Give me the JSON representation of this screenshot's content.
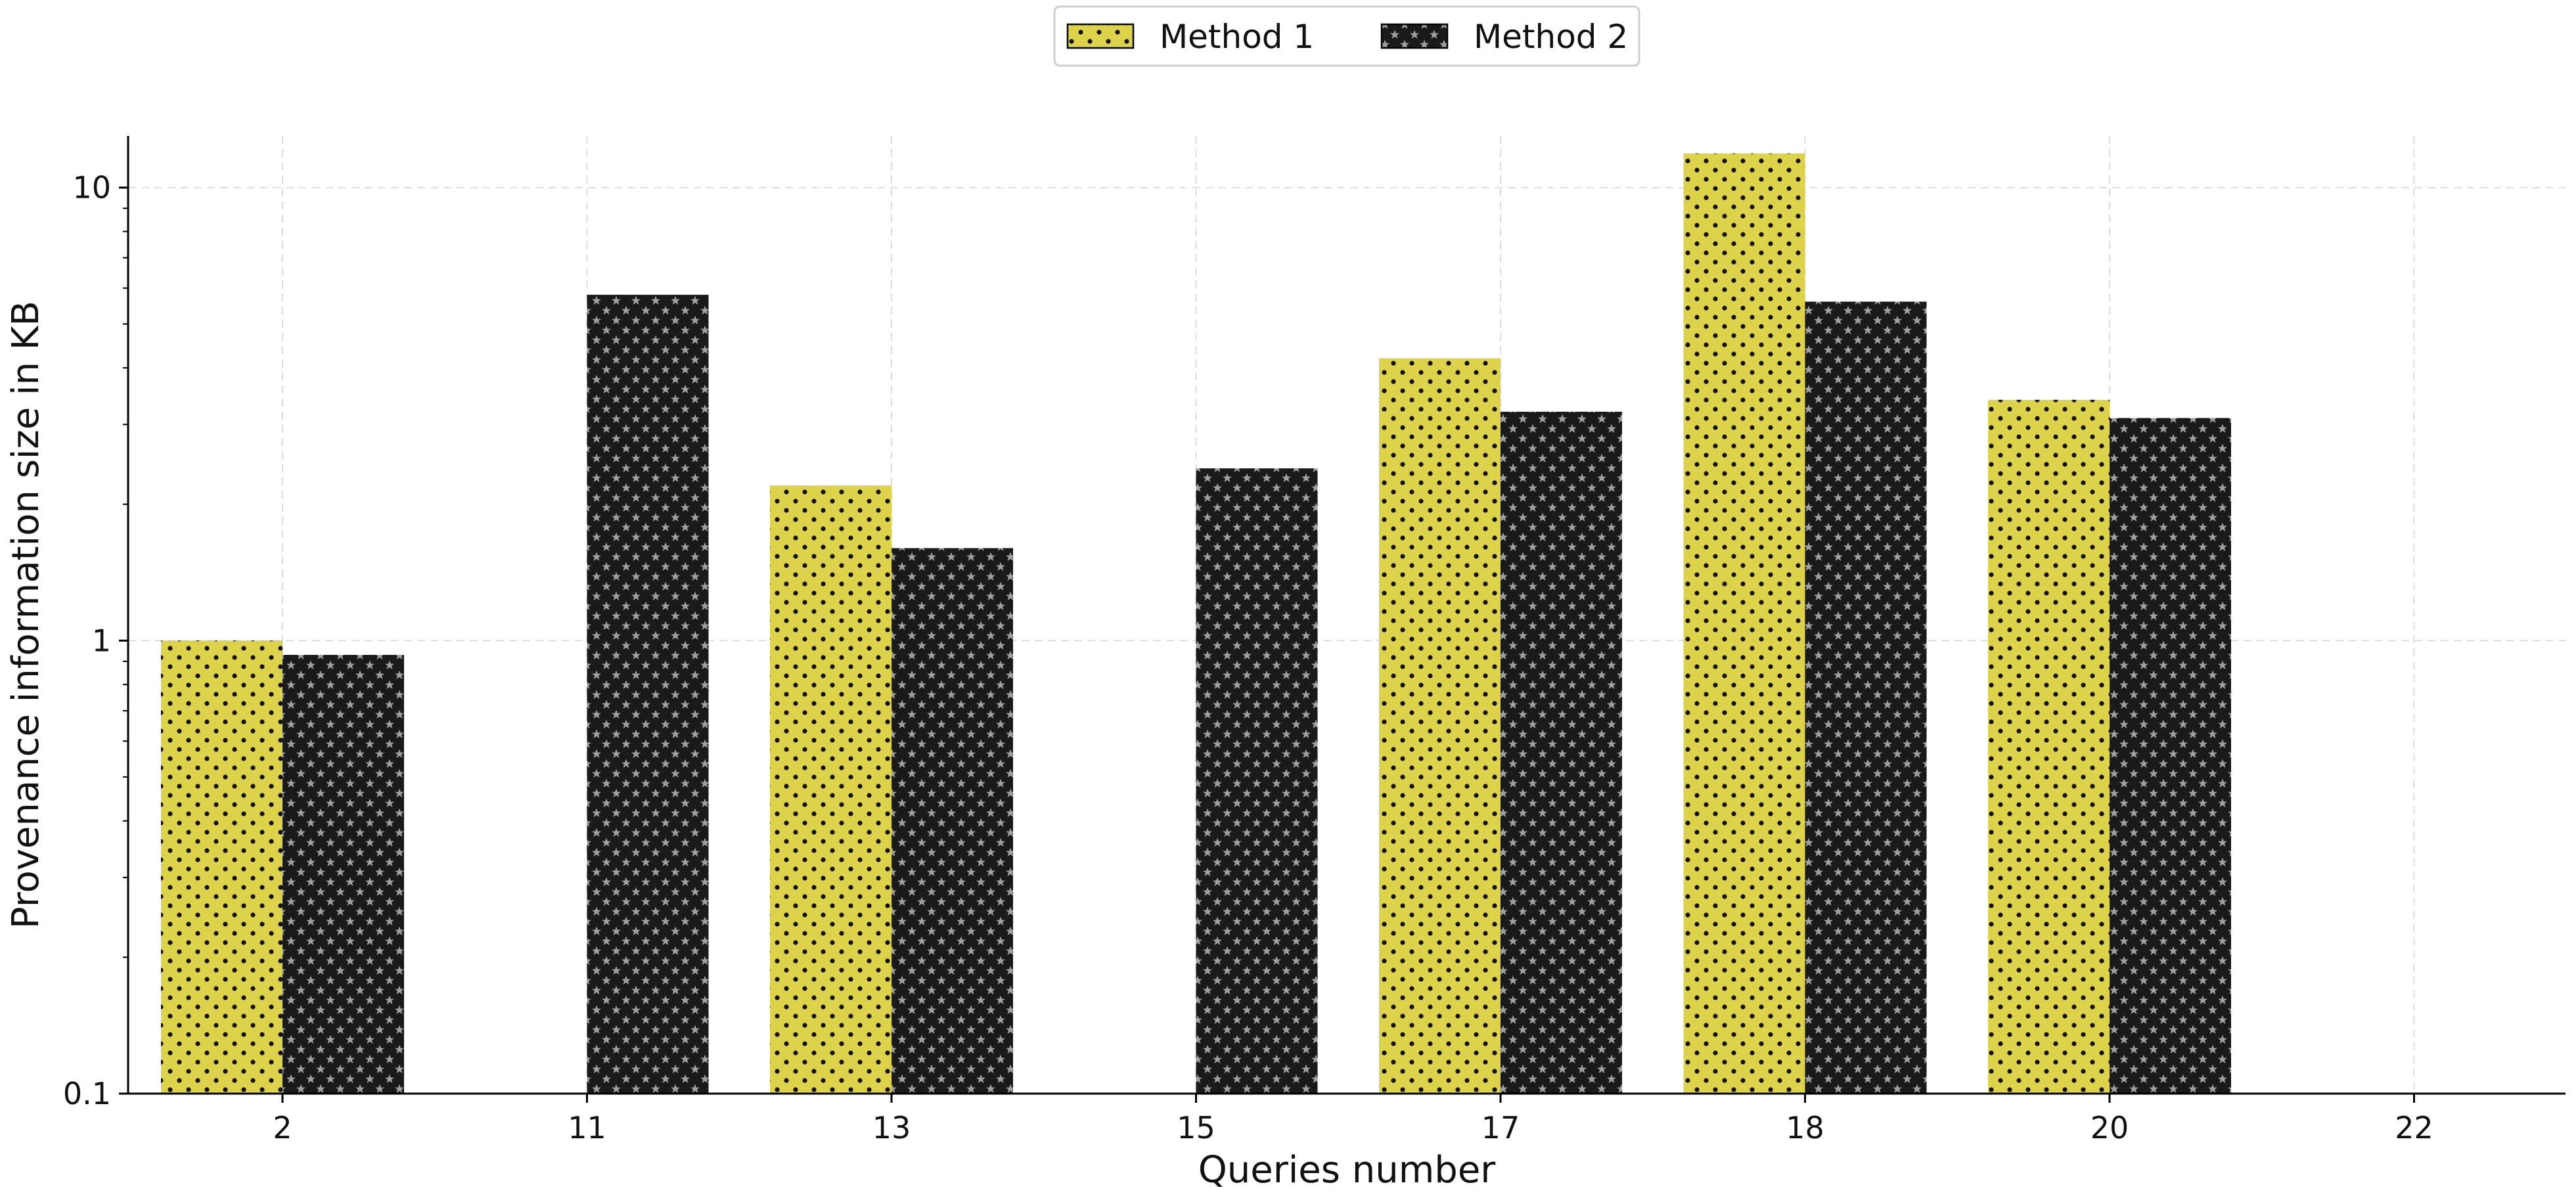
{
  "chart_data": {
    "type": "bar",
    "title": "",
    "xlabel": "Queries number",
    "ylabel": "Provenance information size in KB",
    "yscale": "log",
    "ylim": [
      0.1,
      13
    ],
    "yticks": [
      {
        "value": 0.1,
        "label": "0.1"
      },
      {
        "value": 1,
        "label": "1"
      },
      {
        "value": 10,
        "label": "10"
      }
    ],
    "grid": true,
    "legend_position": "top-center",
    "categories": [
      "2",
      "11",
      "13",
      "15",
      "17",
      "18",
      "20",
      "22"
    ],
    "series": [
      {
        "name": "Method 1",
        "color": "#dcd34a",
        "pattern": "dots",
        "values": [
          1.0,
          null,
          2.2,
          null,
          4.2,
          11.9,
          3.4,
          null
        ]
      },
      {
        "name": "Method 2",
        "color": "#979797",
        "pattern": "stars",
        "values": [
          0.93,
          5.8,
          1.6,
          2.4,
          3.2,
          5.6,
          3.1,
          null
        ]
      }
    ]
  }
}
